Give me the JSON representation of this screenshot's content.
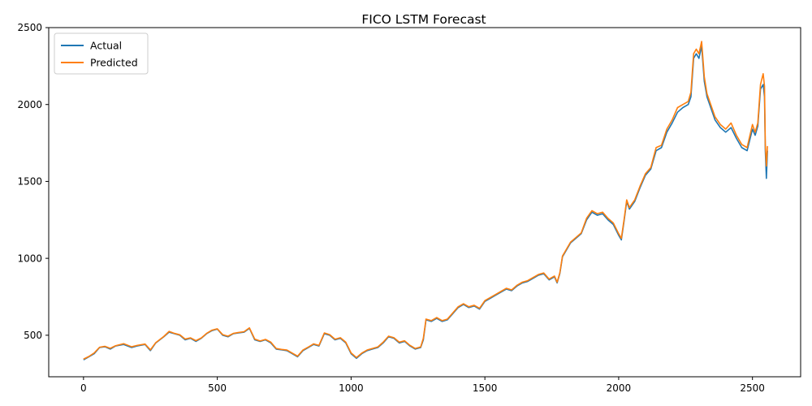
{
  "chart_data": {
    "type": "line",
    "title": "FICO LSTM Forecast",
    "xlabel": "",
    "ylabel": "",
    "xlim": [
      -130,
      2680
    ],
    "ylim": [
      230,
      2500
    ],
    "xticks": [
      0,
      500,
      1000,
      1500,
      2000,
      2500
    ],
    "yticks": [
      500,
      1000,
      1500,
      2000,
      2500
    ],
    "grid": false,
    "legend": "upper-left",
    "series": [
      {
        "name": "Actual",
        "color": "#1f77b4",
        "points": [
          [
            0,
            340
          ],
          [
            20,
            360
          ],
          [
            40,
            380
          ],
          [
            60,
            420
          ],
          [
            80,
            425
          ],
          [
            100,
            410
          ],
          [
            120,
            430
          ],
          [
            150,
            440
          ],
          [
            180,
            420
          ],
          [
            200,
            430
          ],
          [
            230,
            440
          ],
          [
            250,
            400
          ],
          [
            270,
            450
          ],
          [
            300,
            490
          ],
          [
            320,
            520
          ],
          [
            340,
            510
          ],
          [
            360,
            500
          ],
          [
            380,
            470
          ],
          [
            400,
            480
          ],
          [
            420,
            460
          ],
          [
            440,
            480
          ],
          [
            460,
            510
          ],
          [
            480,
            530
          ],
          [
            500,
            540
          ],
          [
            520,
            500
          ],
          [
            540,
            490
          ],
          [
            560,
            510
          ],
          [
            580,
            515
          ],
          [
            600,
            520
          ],
          [
            620,
            545
          ],
          [
            640,
            470
          ],
          [
            660,
            460
          ],
          [
            680,
            470
          ],
          [
            700,
            450
          ],
          [
            720,
            410
          ],
          [
            740,
            405
          ],
          [
            760,
            400
          ],
          [
            780,
            380
          ],
          [
            800,
            360
          ],
          [
            820,
            400
          ],
          [
            840,
            420
          ],
          [
            860,
            440
          ],
          [
            880,
            430
          ],
          [
            900,
            510
          ],
          [
            920,
            500
          ],
          [
            940,
            470
          ],
          [
            960,
            480
          ],
          [
            980,
            450
          ],
          [
            1000,
            380
          ],
          [
            1020,
            350
          ],
          [
            1040,
            380
          ],
          [
            1060,
            400
          ],
          [
            1080,
            410
          ],
          [
            1100,
            420
          ],
          [
            1120,
            450
          ],
          [
            1140,
            490
          ],
          [
            1160,
            480
          ],
          [
            1180,
            450
          ],
          [
            1200,
            460
          ],
          [
            1220,
            430
          ],
          [
            1240,
            410
          ],
          [
            1260,
            420
          ],
          [
            1270,
            470
          ],
          [
            1280,
            600
          ],
          [
            1300,
            590
          ],
          [
            1320,
            610
          ],
          [
            1340,
            590
          ],
          [
            1360,
            600
          ],
          [
            1380,
            640
          ],
          [
            1400,
            680
          ],
          [
            1420,
            700
          ],
          [
            1440,
            680
          ],
          [
            1460,
            690
          ],
          [
            1480,
            670
          ],
          [
            1500,
            720
          ],
          [
            1520,
            740
          ],
          [
            1540,
            760
          ],
          [
            1560,
            780
          ],
          [
            1580,
            800
          ],
          [
            1600,
            790
          ],
          [
            1620,
            820
          ],
          [
            1640,
            840
          ],
          [
            1660,
            850
          ],
          [
            1680,
            870
          ],
          [
            1700,
            890
          ],
          [
            1720,
            900
          ],
          [
            1740,
            860
          ],
          [
            1760,
            880
          ],
          [
            1770,
            840
          ],
          [
            1780,
            900
          ],
          [
            1790,
            1010
          ],
          [
            1800,
            1040
          ],
          [
            1820,
            1100
          ],
          [
            1840,
            1130
          ],
          [
            1860,
            1160
          ],
          [
            1880,
            1250
          ],
          [
            1900,
            1300
          ],
          [
            1920,
            1280
          ],
          [
            1940,
            1290
          ],
          [
            1960,
            1250
          ],
          [
            1980,
            1220
          ],
          [
            2000,
            1150
          ],
          [
            2010,
            1120
          ],
          [
            2020,
            1240
          ],
          [
            2030,
            1370
          ],
          [
            2040,
            1320
          ],
          [
            2060,
            1370
          ],
          [
            2080,
            1460
          ],
          [
            2100,
            1540
          ],
          [
            2120,
            1580
          ],
          [
            2140,
            1700
          ],
          [
            2160,
            1720
          ],
          [
            2180,
            1820
          ],
          [
            2200,
            1880
          ],
          [
            2220,
            1950
          ],
          [
            2240,
            1980
          ],
          [
            2260,
            2000
          ],
          [
            2270,
            2050
          ],
          [
            2280,
            2300
          ],
          [
            2290,
            2330
          ],
          [
            2300,
            2300
          ],
          [
            2310,
            2380
          ],
          [
            2320,
            2150
          ],
          [
            2330,
            2050
          ],
          [
            2340,
            2000
          ],
          [
            2360,
            1900
          ],
          [
            2380,
            1850
          ],
          [
            2400,
            1820
          ],
          [
            2420,
            1850
          ],
          [
            2440,
            1780
          ],
          [
            2460,
            1720
          ],
          [
            2480,
            1700
          ],
          [
            2500,
            1840
          ],
          [
            2510,
            1800
          ],
          [
            2520,
            1860
          ],
          [
            2530,
            2100
          ],
          [
            2540,
            2130
          ],
          [
            2545,
            2050
          ],
          [
            2548,
            1700
          ],
          [
            2552,
            1520
          ],
          [
            2556,
            1700
          ]
        ]
      },
      {
        "name": "Predicted",
        "color": "#ff7f0e",
        "points": [
          [
            0,
            345
          ],
          [
            20,
            362
          ],
          [
            40,
            385
          ],
          [
            60,
            422
          ],
          [
            80,
            428
          ],
          [
            100,
            415
          ],
          [
            120,
            432
          ],
          [
            150,
            445
          ],
          [
            180,
            425
          ],
          [
            200,
            434
          ],
          [
            230,
            443
          ],
          [
            250,
            405
          ],
          [
            270,
            452
          ],
          [
            300,
            492
          ],
          [
            320,
            525
          ],
          [
            340,
            512
          ],
          [
            360,
            503
          ],
          [
            380,
            475
          ],
          [
            400,
            483
          ],
          [
            420,
            465
          ],
          [
            440,
            482
          ],
          [
            460,
            512
          ],
          [
            480,
            533
          ],
          [
            500,
            542
          ],
          [
            520,
            504
          ],
          [
            540,
            494
          ],
          [
            560,
            512
          ],
          [
            580,
            518
          ],
          [
            600,
            523
          ],
          [
            620,
            548
          ],
          [
            640,
            475
          ],
          [
            660,
            463
          ],
          [
            680,
            473
          ],
          [
            700,
            455
          ],
          [
            720,
            414
          ],
          [
            740,
            408
          ],
          [
            760,
            404
          ],
          [
            780,
            384
          ],
          [
            800,
            364
          ],
          [
            820,
            404
          ],
          [
            840,
            423
          ],
          [
            860,
            444
          ],
          [
            880,
            434
          ],
          [
            900,
            515
          ],
          [
            920,
            504
          ],
          [
            940,
            474
          ],
          [
            960,
            484
          ],
          [
            980,
            455
          ],
          [
            1000,
            385
          ],
          [
            1020,
            355
          ],
          [
            1040,
            384
          ],
          [
            1060,
            404
          ],
          [
            1080,
            414
          ],
          [
            1100,
            424
          ],
          [
            1120,
            455
          ],
          [
            1140,
            494
          ],
          [
            1160,
            484
          ],
          [
            1180,
            455
          ],
          [
            1200,
            464
          ],
          [
            1220,
            434
          ],
          [
            1240,
            414
          ],
          [
            1260,
            424
          ],
          [
            1270,
            480
          ],
          [
            1280,
            605
          ],
          [
            1300,
            595
          ],
          [
            1320,
            615
          ],
          [
            1340,
            595
          ],
          [
            1360,
            605
          ],
          [
            1380,
            645
          ],
          [
            1400,
            685
          ],
          [
            1420,
            705
          ],
          [
            1440,
            685
          ],
          [
            1460,
            695
          ],
          [
            1480,
            675
          ],
          [
            1500,
            725
          ],
          [
            1520,
            745
          ],
          [
            1540,
            765
          ],
          [
            1560,
            785
          ],
          [
            1580,
            805
          ],
          [
            1600,
            795
          ],
          [
            1620,
            825
          ],
          [
            1640,
            845
          ],
          [
            1660,
            855
          ],
          [
            1680,
            875
          ],
          [
            1700,
            895
          ],
          [
            1720,
            905
          ],
          [
            1740,
            865
          ],
          [
            1760,
            885
          ],
          [
            1770,
            845
          ],
          [
            1780,
            905
          ],
          [
            1790,
            1015
          ],
          [
            1800,
            1045
          ],
          [
            1820,
            1105
          ],
          [
            1840,
            1135
          ],
          [
            1860,
            1165
          ],
          [
            1880,
            1260
          ],
          [
            1900,
            1310
          ],
          [
            1920,
            1290
          ],
          [
            1940,
            1300
          ],
          [
            1960,
            1260
          ],
          [
            1980,
            1230
          ],
          [
            2000,
            1160
          ],
          [
            2010,
            1130
          ],
          [
            2020,
            1250
          ],
          [
            2030,
            1380
          ],
          [
            2040,
            1330
          ],
          [
            2060,
            1380
          ],
          [
            2080,
            1470
          ],
          [
            2100,
            1550
          ],
          [
            2120,
            1590
          ],
          [
            2140,
            1720
          ],
          [
            2160,
            1735
          ],
          [
            2180,
            1840
          ],
          [
            2200,
            1900
          ],
          [
            2220,
            1980
          ],
          [
            2240,
            2000
          ],
          [
            2260,
            2020
          ],
          [
            2270,
            2080
          ],
          [
            2280,
            2330
          ],
          [
            2290,
            2360
          ],
          [
            2300,
            2330
          ],
          [
            2310,
            2410
          ],
          [
            2320,
            2180
          ],
          [
            2330,
            2070
          ],
          [
            2340,
            2020
          ],
          [
            2360,
            1920
          ],
          [
            2380,
            1870
          ],
          [
            2400,
            1840
          ],
          [
            2420,
            1880
          ],
          [
            2440,
            1800
          ],
          [
            2460,
            1740
          ],
          [
            2480,
            1720
          ],
          [
            2500,
            1870
          ],
          [
            2510,
            1820
          ],
          [
            2520,
            1880
          ],
          [
            2530,
            2130
          ],
          [
            2540,
            2200
          ],
          [
            2545,
            2120
          ],
          [
            2548,
            1740
          ],
          [
            2552,
            1600
          ],
          [
            2556,
            1730
          ]
        ]
      }
    ]
  }
}
